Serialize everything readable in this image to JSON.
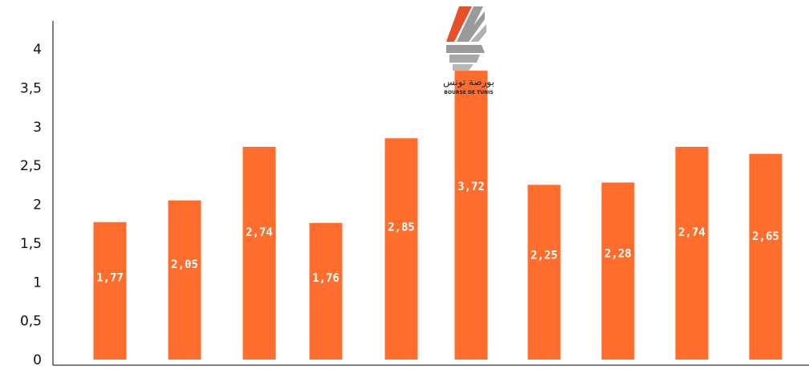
{
  "chart_data": {
    "type": "bar",
    "categories": [
      "",
      "",
      "",
      "",
      "",
      "",
      "",
      "",
      "",
      ""
    ],
    "values": [
      1.77,
      2.05,
      2.74,
      1.76,
      2.85,
      3.72,
      2.25,
      2.28,
      2.74,
      2.65
    ],
    "data_labels": [
      "1,77",
      "2,05",
      "2,74",
      "1,76",
      "2,85",
      "3,72",
      "2,25",
      "2,28",
      "2,74",
      "2,65"
    ],
    "yticks": [
      {
        "value": 0,
        "label": "0"
      },
      {
        "value": 0.5,
        "label": "0,5"
      },
      {
        "value": 1,
        "label": "1"
      },
      {
        "value": 1.5,
        "label": "1,5"
      },
      {
        "value": 2,
        "label": "2"
      },
      {
        "value": 2.5,
        "label": "2,5"
      },
      {
        "value": 3,
        "label": "3"
      },
      {
        "value": 3.5,
        "label": "3,5"
      },
      {
        "value": 4,
        "label": "4"
      }
    ],
    "ylim": [
      0,
      4.3
    ],
    "grid": false,
    "legend": "none",
    "title": "",
    "xlabel": "",
    "ylabel": "",
    "bar_color": "#FF6D2D",
    "axis_color": "#555555"
  },
  "logo": {
    "arabic_text": "بورصة تونس",
    "latin_text": "BOURSE DE TUNIS",
    "colors": {
      "accent": "#E8502A",
      "grey": "#9A9A9A"
    }
  }
}
